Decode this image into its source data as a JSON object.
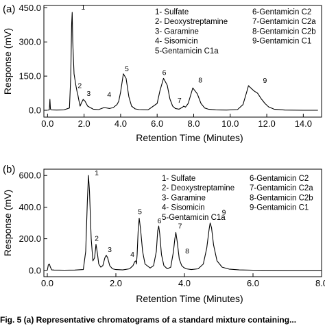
{
  "caption": "Fig. 5  (a) Representative chromatograms of a standard mixture containing...",
  "chart_data": [
    {
      "type": "line",
      "panel_label": "(a)",
      "xlabel": "Retention Time (Minutes)",
      "ylabel": "Response (mV)",
      "xlim": [
        -0.2,
        15.0
      ],
      "ylim": [
        -30,
        460
      ],
      "xticks": [
        0,
        2,
        4,
        6,
        8,
        10,
        12,
        14
      ],
      "xtick_labels": [
        "0.0",
        "2.0",
        "4.0",
        "6.0",
        "8.0",
        "10.0",
        "12.0",
        "14.0"
      ],
      "yticks": [
        0,
        150,
        300,
        450
      ],
      "ytick_labels": [
        "0.0",
        "150.0",
        "300.0",
        "450.0"
      ],
      "grid": false,
      "legend": {
        "columns": [
          [
            "1- Sulfate",
            "2- Deoxystreptamine",
            "3- Garamine",
            "4- Sisomicin",
            "5-Gentamicin C1a"
          ],
          [
            "6-Gentamicin C2",
            "7-Gentamicin C2a",
            "8-Gentamicin C2b",
            "9-Gentamicin C1"
          ]
        ]
      },
      "peaks": [
        {
          "label": "1",
          "time": 1.35,
          "height": 430
        },
        {
          "label": "2",
          "time": 1.65,
          "height": 80
        },
        {
          "label": "3",
          "time": 1.95,
          "height": 48
        },
        {
          "label": "4",
          "time": 3.9,
          "height": 40
        },
        {
          "label": "5",
          "time": 4.15,
          "height": 160
        },
        {
          "label": "6",
          "time": 6.35,
          "height": 140
        },
        {
          "label": "7",
          "time": 7.45,
          "height": 18
        },
        {
          "label": "8",
          "time": 7.95,
          "height": 98
        },
        {
          "label": "9",
          "time": 11.0,
          "height": 108
        }
      ],
      "series": [
        {
          "x": [
            0.0,
            0.1,
            0.13,
            0.16,
            0.2,
            0.5,
            0.9,
            1.2,
            1.27,
            1.32,
            1.35,
            1.38,
            1.45,
            1.55,
            1.62,
            1.65,
            1.7,
            1.78,
            1.84,
            1.95,
            2.05,
            2.2,
            2.5,
            2.8,
            3.1,
            3.4,
            3.6,
            3.8,
            3.9,
            4.0,
            4.15,
            4.3,
            4.45,
            4.6,
            4.8,
            5.0,
            5.5,
            6.0,
            6.15,
            6.35,
            6.55,
            6.7,
            6.85,
            7.0,
            7.2,
            7.4,
            7.45,
            7.55,
            7.7,
            7.95,
            8.2,
            8.4,
            8.6,
            8.8,
            9.2,
            9.8,
            10.4,
            10.7,
            10.9,
            11.0,
            11.1,
            11.3,
            11.5,
            11.7,
            11.9,
            12.1,
            12.4,
            13.0,
            14.0,
            14.8
          ],
          "y": [
            0,
            2,
            48,
            5,
            2,
            1,
            2,
            10,
            150,
            380,
            430,
            300,
            160,
            110,
            80,
            72,
            50,
            18,
            30,
            48,
            40,
            18,
            5,
            3,
            12,
            8,
            12,
            25,
            40,
            80,
            160,
            140,
            60,
            18,
            6,
            3,
            2,
            30,
            85,
            140,
            110,
            50,
            18,
            8,
            5,
            14,
            18,
            14,
            30,
            98,
            72,
            30,
            10,
            5,
            2,
            1,
            3,
            25,
            80,
            108,
            100,
            85,
            75,
            50,
            30,
            15,
            5,
            1,
            0,
            0
          ]
        }
      ]
    },
    {
      "type": "line",
      "panel_label": "(b)",
      "xlabel": "Retention Time (Minutes)",
      "ylabel": "Response (mV)",
      "xlim": [
        -0.1,
        8.0
      ],
      "ylim": [
        -40,
        640
      ],
      "xticks": [
        0,
        2,
        4,
        6,
        8
      ],
      "xtick_labels": [
        "0.0",
        "2.0",
        "4.0",
        "6.0",
        "8.0"
      ],
      "yticks": [
        0,
        200,
        400,
        600
      ],
      "ytick_labels": [
        "0.0",
        "200.0",
        "400.0",
        "600.0"
      ],
      "grid": false,
      "legend": {
        "columns": [
          [
            "1- Sulfate",
            "2- Deoxystreptamine",
            "3- Garamine",
            "4- Sisomicin",
            "5-Gentamicin C1a"
          ],
          [
            "6-Gentamicin C2",
            "7-Gentamicin C2a",
            "8-Gentamicin C2b",
            "9-Gentamicin C1"
          ]
        ]
      },
      "peaks": [
        {
          "label": "1",
          "time": 1.2,
          "height": 600
        },
        {
          "label": "2",
          "time": 1.42,
          "height": 165
        },
        {
          "label": "3",
          "time": 1.72,
          "height": 95
        },
        {
          "label": "4",
          "time": 2.58,
          "height": 60
        },
        {
          "label": "5",
          "time": 2.68,
          "height": 330
        },
        {
          "label": "6",
          "time": 3.25,
          "height": 280
        },
        {
          "label": "7",
          "time": 3.75,
          "height": 240
        },
        {
          "label": "8",
          "time": 3.92,
          "height": 30
        },
        {
          "label": "9",
          "time": 4.75,
          "height": 300
        }
      ],
      "series": [
        {
          "x": [
            0.0,
            0.03,
            0.06,
            0.09,
            0.13,
            0.2,
            0.5,
            0.8,
            1.05,
            1.12,
            1.17,
            1.2,
            1.23,
            1.28,
            1.33,
            1.38,
            1.42,
            1.46,
            1.5,
            1.56,
            1.62,
            1.68,
            1.72,
            1.76,
            1.82,
            1.9,
            2.0,
            2.2,
            2.4,
            2.5,
            2.55,
            2.58,
            2.6,
            2.62,
            2.65,
            2.68,
            2.72,
            2.78,
            2.85,
            3.0,
            3.1,
            3.18,
            3.22,
            3.25,
            3.28,
            3.33,
            3.4,
            3.5,
            3.6,
            3.68,
            3.72,
            3.75,
            3.79,
            3.85,
            3.92,
            3.98,
            4.05,
            4.2,
            4.4,
            4.55,
            4.65,
            4.72,
            4.75,
            4.79,
            4.85,
            4.95,
            5.1,
            5.3,
            5.6,
            6.0,
            7.0,
            8.0
          ],
          "y": [
            0,
            35,
            40,
            20,
            3,
            2,
            1,
            2,
            5,
            120,
            450,
            600,
            500,
            200,
            60,
            80,
            165,
            110,
            40,
            20,
            30,
            80,
            95,
            80,
            30,
            10,
            5,
            3,
            10,
            30,
            55,
            60,
            40,
            100,
            250,
            330,
            260,
            120,
            40,
            15,
            30,
            120,
            250,
            280,
            230,
            100,
            30,
            10,
            20,
            120,
            200,
            240,
            180,
            70,
            30,
            18,
            10,
            5,
            10,
            40,
            140,
            260,
            300,
            270,
            160,
            60,
            20,
            8,
            3,
            1,
            0,
            0
          ]
        }
      ]
    }
  ]
}
